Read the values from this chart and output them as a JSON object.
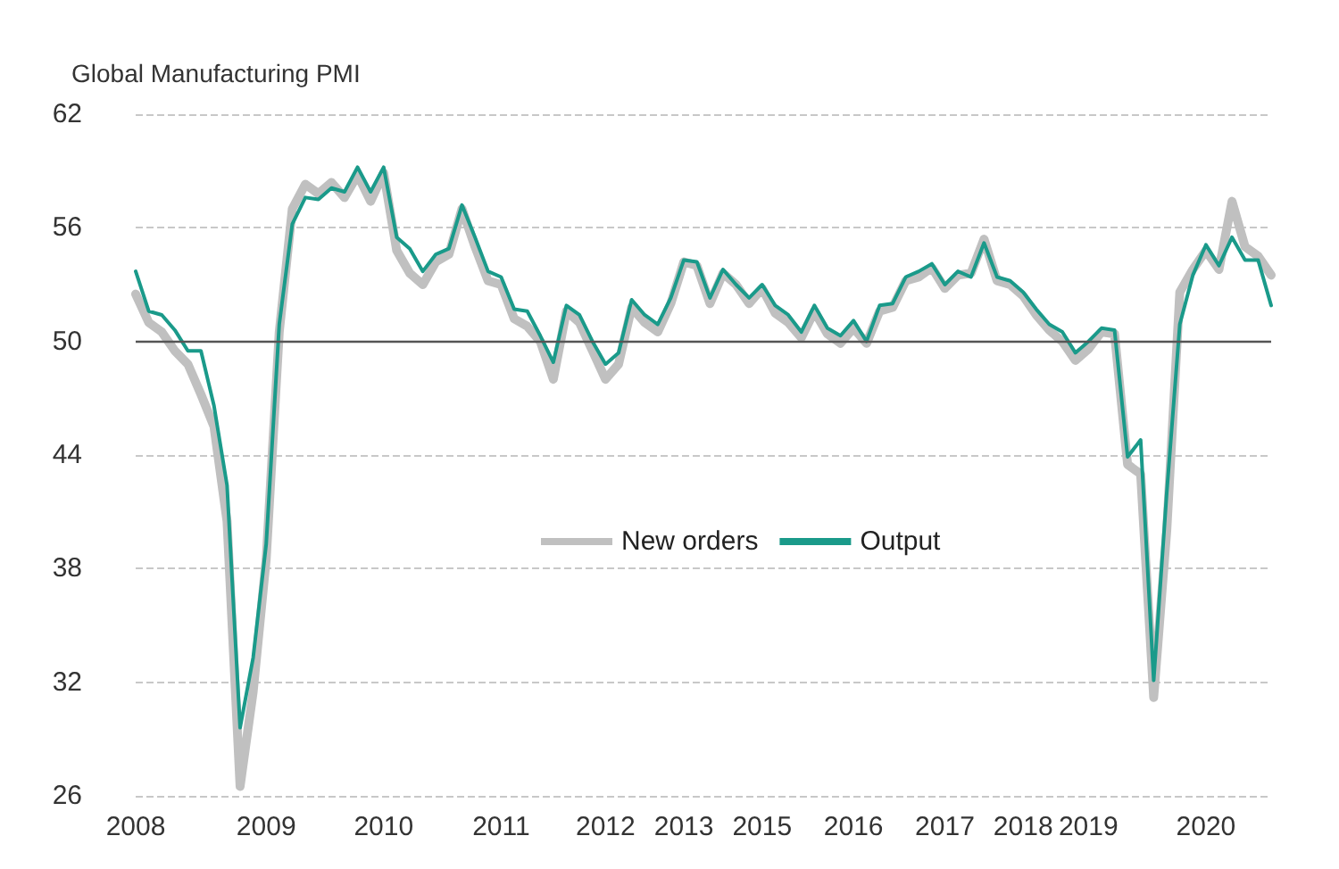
{
  "chart_data": {
    "type": "line",
    "ylabel": "Global Manufacturing PMI",
    "categories": [
      "2008",
      null,
      null,
      null,
      null,
      null,
      null,
      null,
      null,
      null,
      "2009",
      null,
      null,
      null,
      null,
      null,
      null,
      null,
      null,
      "2010",
      null,
      null,
      null,
      null,
      null,
      null,
      null,
      null,
      "2011",
      null,
      null,
      null,
      null,
      null,
      null,
      null,
      "2012",
      null,
      null,
      null,
      null,
      null,
      "2013",
      null,
      null,
      null,
      null,
      null,
      "2015",
      null,
      null,
      null,
      null,
      null,
      null,
      "2016",
      null,
      null,
      null,
      null,
      null,
      null,
      "2017",
      null,
      null,
      null,
      null,
      null,
      "2018",
      null,
      null,
      null,
      null,
      "2019",
      null,
      null,
      null,
      null,
      null,
      null,
      null,
      null,
      "2020",
      null,
      null,
      null,
      null,
      null
    ],
    "ylim": [
      26,
      62
    ],
    "yticks": [
      26,
      32,
      38,
      44,
      50,
      56,
      62
    ],
    "grid": "y",
    "legend": "center",
    "marker": "none",
    "ref_lines": [
      {
        "axis": "y",
        "value": 50,
        "color": "#555555"
      }
    ],
    "series": [
      {
        "name": "New orders",
        "color": "#c0c0c0",
        "values": [
          52.5,
          51.0,
          50.5,
          49.5,
          48.8,
          47.2,
          45.5,
          40.5,
          26.5,
          31.5,
          38.5,
          50.5,
          57.0,
          58.3,
          57.8,
          58.4,
          57.6,
          58.8,
          57.4,
          58.9,
          54.8,
          53.6,
          53.0,
          54.2,
          54.6,
          57.0,
          55.0,
          53.2,
          53.0,
          51.2,
          50.8,
          50.0,
          48.0,
          51.6,
          51.0,
          49.5,
          48.0,
          48.8,
          51.8,
          51.0,
          50.5,
          52.0,
          54.2,
          54.0,
          52.0,
          53.6,
          53.0,
          52.0,
          52.8,
          51.5,
          51.0,
          50.2,
          51.6,
          50.4,
          49.9,
          50.7,
          49.9,
          51.6,
          51.8,
          53.2,
          53.4,
          53.9,
          52.8,
          53.5,
          53.6,
          55.4,
          53.2,
          53.0,
          52.4,
          51.4,
          50.6,
          50.0,
          49.0,
          49.6,
          50.5,
          50.4,
          43.5,
          43.0,
          31.2,
          40.0,
          52.6,
          53.8,
          54.8,
          53.8,
          57.4,
          55.0,
          54.5,
          53.5
        ]
      },
      {
        "name": "Output",
        "color": "#1a9a8a",
        "values": [
          53.7,
          51.6,
          51.4,
          50.6,
          49.5,
          49.5,
          46.6,
          42.4,
          29.6,
          33.3,
          39.3,
          50.9,
          56.2,
          57.6,
          57.5,
          58.1,
          57.9,
          59.2,
          57.9,
          59.2,
          55.5,
          54.9,
          53.7,
          54.6,
          54.9,
          57.2,
          55.5,
          53.7,
          53.4,
          51.7,
          51.6,
          50.3,
          48.9,
          51.9,
          51.4,
          50.0,
          48.8,
          49.4,
          52.2,
          51.4,
          50.9,
          52.3,
          54.3,
          54.2,
          52.3,
          53.8,
          53.0,
          52.3,
          53.0,
          51.9,
          51.4,
          50.5,
          51.9,
          50.7,
          50.3,
          51.1,
          50.0,
          51.9,
          52.0,
          53.4,
          53.7,
          54.1,
          53.0,
          53.7,
          53.4,
          55.2,
          53.4,
          53.2,
          52.6,
          51.7,
          50.9,
          50.5,
          49.4,
          50.0,
          50.7,
          50.6,
          43.9,
          44.8,
          32.1,
          42.0,
          50.9,
          53.5,
          55.1,
          54.0,
          55.5,
          54.3,
          54.3,
          51.9
        ]
      }
    ]
  }
}
